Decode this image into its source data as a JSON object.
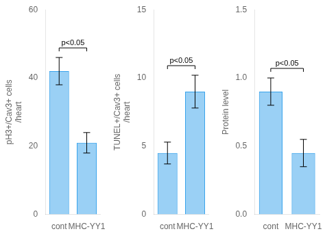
{
  "chart_data": [
    {
      "type": "bar",
      "categories": [
        "cont",
        "MHC-YY1"
      ],
      "values": [
        42,
        21
      ],
      "errors": [
        4,
        3
      ],
      "ylabel": "pH3+/Cav3+ cells\n/heart",
      "ylim": [
        0,
        60
      ],
      "yticks": [
        0,
        20,
        40,
        60
      ],
      "grid": false,
      "annotations": [
        "p<0.05"
      ]
    },
    {
      "type": "bar",
      "categories": [
        "cont",
        "MHC-YY1"
      ],
      "values": [
        4.5,
        9
      ],
      "errors": [
        0.8,
        1.2
      ],
      "ylabel": "TUNEL+/Cav3+ cells\n/heart",
      "ylim": [
        0,
        15
      ],
      "yticks": [
        0,
        5,
        10,
        15
      ],
      "grid": false,
      "annotations": [
        "p<0.05"
      ]
    },
    {
      "type": "bar",
      "categories": [
        "cont",
        "MHC-YY1"
      ],
      "values": [
        0.9,
        0.45
      ],
      "errors": [
        0.1,
        0.1
      ],
      "ylabel": "Protein level",
      "ylim": [
        0,
        1.5
      ],
      "yticks": [
        {
          "value": 0,
          "label": "0.0"
        },
        0.5,
        {
          "value": 1,
          "label": "1.0"
        },
        1.5
      ],
      "grid": false,
      "annotations": [
        "p<0.05"
      ]
    }
  ]
}
